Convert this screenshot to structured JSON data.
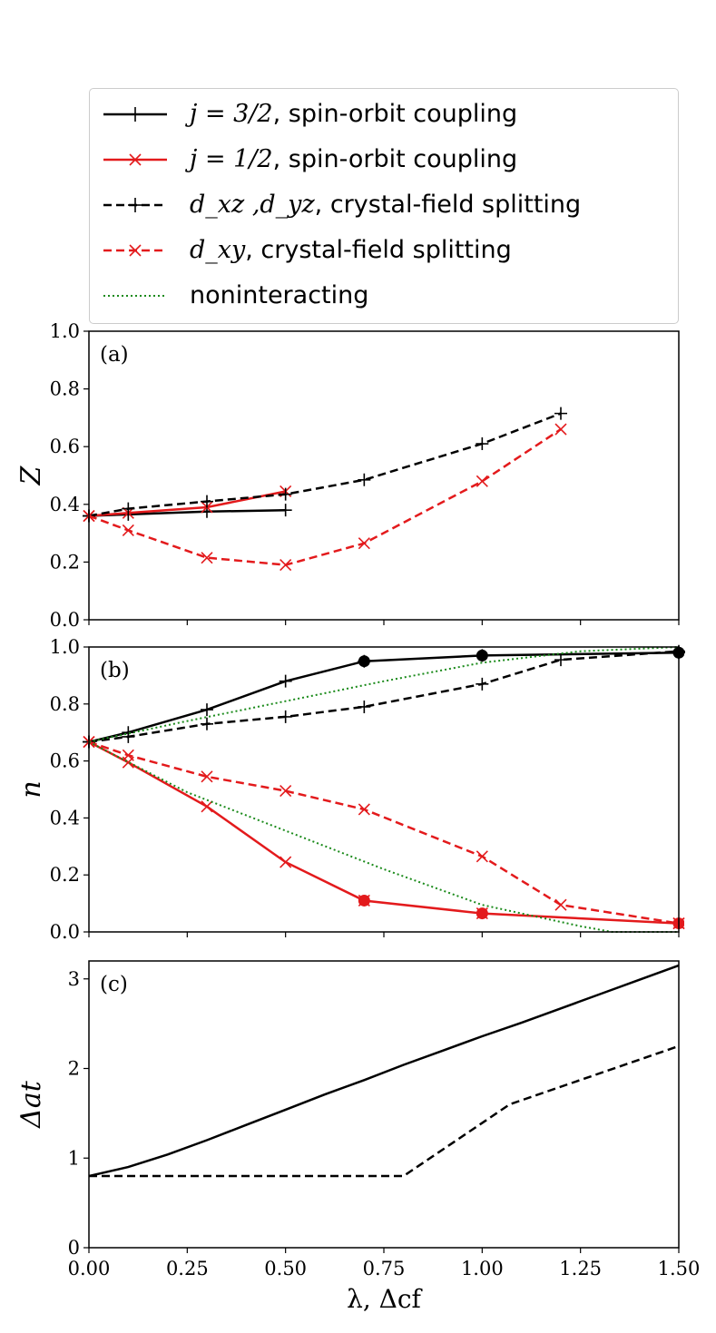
{
  "legend": [
    {
      "math": "j = 3/2",
      "text": ", spin-orbit coupling",
      "color": "#000000",
      "dash": "solid",
      "marker": "plus"
    },
    {
      "math": "j = 1/2",
      "text": ", spin-orbit coupling",
      "color": "#e31a1c",
      "dash": "solid",
      "marker": "x"
    },
    {
      "math": "d_xz ,d_yz",
      "text": ", crystal-field splitting",
      "color": "#000000",
      "dash": "dashed",
      "marker": "plus"
    },
    {
      "math": "d_xy",
      "text": ", crystal-field splitting",
      "color": "#e31a1c",
      "dash": "dashed",
      "marker": "x"
    },
    {
      "math": "",
      "text": "noninteracting",
      "color": "#1a8a1a",
      "dash": "dotted",
      "marker": "none"
    }
  ],
  "chart_data": [
    {
      "type": "line",
      "panel_label": "(a)",
      "ylabel": "Z",
      "xlim": [
        0,
        1.5
      ],
      "ylim": [
        0,
        1.0
      ],
      "yticks": [
        "0.0",
        "0.2",
        "0.4",
        "0.6",
        "0.8",
        "1.0"
      ],
      "series": [
        {
          "name": "j = 3/2, spin-orbit coupling",
          "color": "#000000",
          "dash": "solid",
          "marker": "plus",
          "x": [
            0.0,
            0.1,
            0.3,
            0.5
          ],
          "y": [
            0.36,
            0.365,
            0.375,
            0.38
          ]
        },
        {
          "name": "j = 1/2, spin-orbit coupling",
          "color": "#e31a1c",
          "dash": "solid",
          "marker": "x",
          "x": [
            0.0,
            0.1,
            0.3,
            0.5
          ],
          "y": [
            0.36,
            0.37,
            0.39,
            0.445
          ]
        },
        {
          "name": "dxz, dyz, crystal-field splitting",
          "color": "#000000",
          "dash": "dashed",
          "marker": "plus",
          "x": [
            0.0,
            0.1,
            0.3,
            0.5,
            0.7,
            1.0,
            1.2
          ],
          "y": [
            0.36,
            0.385,
            0.41,
            0.435,
            0.485,
            0.61,
            0.715
          ]
        },
        {
          "name": "dxy, crystal-field splitting",
          "color": "#e31a1c",
          "dash": "dashed",
          "marker": "x",
          "x": [
            0.0,
            0.1,
            0.3,
            0.5,
            0.7,
            1.0,
            1.2
          ],
          "y": [
            0.36,
            0.31,
            0.215,
            0.19,
            0.265,
            0.48,
            0.66
          ]
        }
      ]
    },
    {
      "type": "line",
      "panel_label": "(b)",
      "ylabel": "n",
      "xlim": [
        0,
        1.5
      ],
      "ylim": [
        0,
        1.0
      ],
      "yticks": [
        "0.0",
        "0.2",
        "0.4",
        "0.6",
        "0.8",
        "1.0"
      ],
      "series": [
        {
          "name": "j = 3/2, spin-orbit coupling",
          "color": "#000000",
          "dash": "solid",
          "marker": "plus",
          "x": [
            0.0,
            0.1,
            0.3,
            0.5,
            0.7,
            1.0,
            1.5
          ],
          "y": [
            0.667,
            0.7,
            0.78,
            0.88,
            0.95,
            0.97,
            0.98
          ],
          "dots": [
            0.7,
            1.0,
            1.5
          ]
        },
        {
          "name": "j = 1/2, spin-orbit coupling",
          "color": "#e31a1c",
          "dash": "solid",
          "marker": "x",
          "x": [
            0.0,
            0.1,
            0.3,
            0.5,
            0.7,
            1.0,
            1.5
          ],
          "y": [
            0.667,
            0.595,
            0.44,
            0.245,
            0.11,
            0.065,
            0.03
          ],
          "dots": [
            0.7,
            1.0,
            1.5
          ]
        },
        {
          "name": "dxz, dyz, crystal-field splitting",
          "color": "#000000",
          "dash": "dashed",
          "marker": "plus",
          "x": [
            0.0,
            0.1,
            0.3,
            0.5,
            0.7,
            1.0,
            1.2,
            1.5
          ],
          "y": [
            0.667,
            0.685,
            0.73,
            0.755,
            0.79,
            0.87,
            0.955,
            0.985
          ]
        },
        {
          "name": "dxy, crystal-field splitting",
          "color": "#e31a1c",
          "dash": "dashed",
          "marker": "x",
          "x": [
            0.0,
            0.1,
            0.3,
            0.5,
            0.7,
            1.0,
            1.2,
            1.5
          ],
          "y": [
            0.667,
            0.62,
            0.545,
            0.495,
            0.43,
            0.265,
            0.095,
            0.03
          ]
        },
        {
          "name": "noninteracting (upper)",
          "color": "#1a8a1a",
          "dash": "dotted",
          "marker": "none",
          "x": [
            0.0,
            0.25,
            0.5,
            0.75,
            1.0,
            1.25,
            1.5
          ],
          "y": [
            0.667,
            0.74,
            0.81,
            0.88,
            0.945,
            0.985,
            1.0
          ]
        },
        {
          "name": "noninteracting (lower)",
          "color": "#1a8a1a",
          "dash": "dotted",
          "marker": "none",
          "x": [
            0.0,
            0.25,
            0.5,
            0.75,
            1.0,
            1.25,
            1.33,
            1.5
          ],
          "y": [
            0.667,
            0.49,
            0.355,
            0.22,
            0.095,
            0.02,
            0.0,
            0.0
          ]
        }
      ]
    },
    {
      "type": "line",
      "panel_label": "(c)",
      "ylabel": "Δat",
      "xlabel": "λ, Δcf",
      "xlim": [
        0,
        1.5
      ],
      "ylim": [
        0,
        3.2
      ],
      "yticks": [
        "0",
        "1",
        "2",
        "3"
      ],
      "xticks": [
        "0.00",
        "0.25",
        "0.50",
        "0.75",
        "1.00",
        "1.25",
        "1.50"
      ],
      "series": [
        {
          "name": "spin-orbit coupling",
          "color": "#000000",
          "dash": "solid",
          "marker": "none",
          "x": [
            0.0,
            0.1,
            0.2,
            0.3,
            0.4,
            0.5,
            0.6,
            0.7,
            0.8,
            0.9,
            1.0,
            1.1,
            1.2,
            1.3,
            1.4,
            1.5
          ],
          "y": [
            0.8,
            0.9,
            1.04,
            1.2,
            1.37,
            1.54,
            1.71,
            1.87,
            2.04,
            2.2,
            2.36,
            2.51,
            2.67,
            2.83,
            2.99,
            3.15
          ]
        },
        {
          "name": "crystal-field splitting",
          "color": "#000000",
          "dash": "dashed",
          "marker": "none",
          "x": [
            0.0,
            0.8,
            1.07,
            1.5
          ],
          "y": [
            0.8,
            0.8,
            1.6,
            2.25
          ]
        }
      ]
    }
  ]
}
